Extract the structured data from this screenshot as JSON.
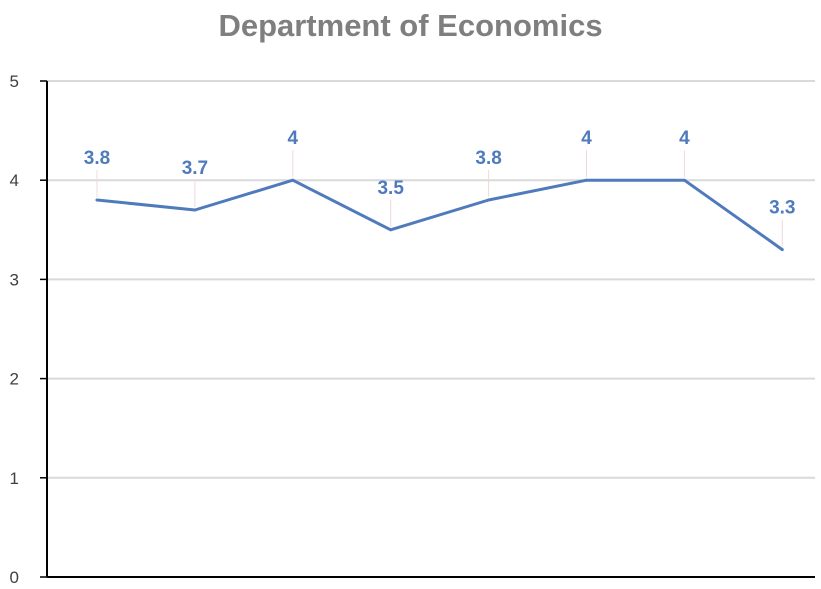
{
  "chart_data": {
    "type": "line",
    "title": "Department of Economics",
    "xlabel": "",
    "ylabel": "",
    "ylim": [
      0,
      5
    ],
    "yticks": [
      "0",
      "1",
      "2",
      "3",
      "4",
      "5"
    ],
    "grid": true,
    "legend": "none",
    "series": [
      {
        "values": [
          3.8,
          3.7,
          4,
          3.5,
          3.8,
          4,
          4,
          3.3
        ],
        "labels": [
          "3.8",
          "3.7",
          "4",
          "3.5",
          "3.8",
          "4",
          "4",
          "3.3"
        ],
        "color": "#4f7bbd"
      }
    ],
    "gridline_color": "#d9d9d9",
    "axis_color": "#000000"
  }
}
